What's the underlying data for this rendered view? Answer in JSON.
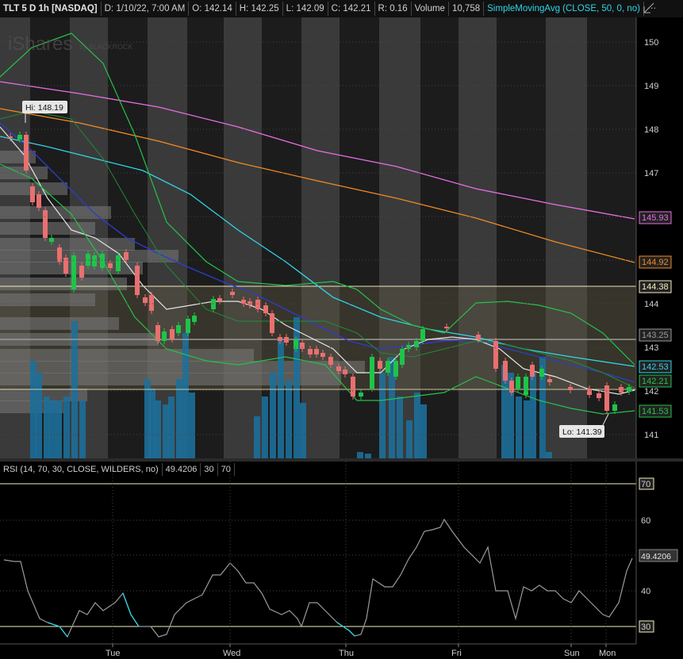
{
  "header": {
    "symbol": "TLT 5 D 1h [NASDAQ]",
    "date": "D: 1/10/22, 7:00 AM",
    "open": "O: 142.14",
    "high": "H: 142.25",
    "low": "L: 142.09",
    "close": "C: 142.21",
    "range": "R: 0.16",
    "volume_label": "Volume",
    "volume": "10,758",
    "study": "SimpleMovingAvg (CLOSE, 50, 0, no)",
    "menu_icon": "ellipsis-menu-icon"
  },
  "watermark": {
    "brand": "iShares",
    "sub": "by BLACKROCK"
  },
  "price_panel": {
    "axis_ticks": [
      "150",
      "149",
      "148",
      "147",
      "146",
      "145",
      "144",
      "143",
      "142",
      "141"
    ],
    "markers": [
      {
        "label": "145.93",
        "color": "#e86ee6"
      },
      {
        "label": "144.92",
        "color": "#f08a24"
      },
      {
        "label": "144.38",
        "color": "#f5f0c0"
      },
      {
        "label": "143.25",
        "color": "#9a9a9a"
      },
      {
        "label": "142.53",
        "color": "#2fd5e6"
      },
      {
        "label": "142.21",
        "color": "#26c24a"
      },
      {
        "label": "141.53",
        "color": "#26c24a"
      }
    ],
    "hi_label": "Hi: 148.19",
    "lo_label": "Lo: 141.39"
  },
  "rsi_panel": {
    "study": "RSI (14, 70, 30, CLOSE, WILDERS, no)",
    "value": "49.4206",
    "level_low": "30",
    "level_high": "70",
    "axis_ticks": [
      "70",
      "60",
      "50",
      "40",
      "30"
    ],
    "current_label": "49.4206"
  },
  "time_axis": [
    "Tue",
    "Wed",
    "Thu",
    "Fri",
    "Sun",
    "Mon"
  ]
}
